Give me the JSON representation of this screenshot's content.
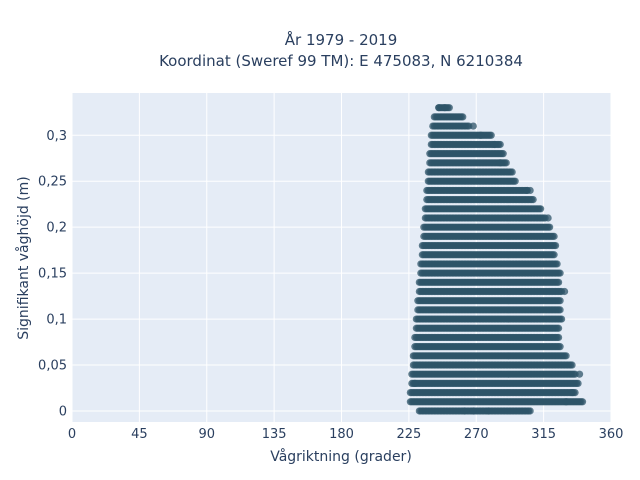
{
  "chart_data": {
    "type": "scatter",
    "title_lines": [
      "År 1979 - 2019",
      "Koordinat (Sweref 99 TM): E 475083, N 6210384"
    ],
    "xlabel": "Vågriktning (grader)",
    "ylabel": "Signifikant våghöjd (m)",
    "xlim": [
      0,
      360
    ],
    "ylim": [
      -0.012,
      0.346
    ],
    "x_ticks": [
      0,
      45,
      90,
      135,
      180,
      225,
      270,
      315,
      360
    ],
    "x_tick_labels": [
      "0",
      "45",
      "90",
      "135",
      "180",
      "225",
      "270",
      "315",
      "360"
    ],
    "y_ticks": [
      0,
      0.05,
      0.1,
      0.15,
      0.2,
      0.25,
      0.3
    ],
    "y_tick_labels": [
      "0",
      "0,05",
      "0,1",
      "0,15",
      "0,2",
      "0,25",
      "0,3"
    ],
    "grid": true,
    "background": "#e5ecf6",
    "marker_color": "#2e5468",
    "bands": [
      {
        "y": 0.33,
        "x": [
          245,
          252
        ]
      },
      {
        "y": 0.32,
        "x": [
          242,
          261
        ]
      },
      {
        "y": 0.31,
        "x": [
          241,
          265
        ]
      },
      {
        "y": 0.3,
        "x": [
          240,
          280
        ]
      },
      {
        "y": 0.29,
        "x": [
          240,
          286
        ]
      },
      {
        "y": 0.28,
        "x": [
          239,
          288
        ]
      },
      {
        "y": 0.27,
        "x": [
          239,
          290
        ]
      },
      {
        "y": 0.26,
        "x": [
          238,
          294
        ]
      },
      {
        "y": 0.25,
        "x": [
          238,
          296
        ]
      },
      {
        "y": 0.24,
        "x": [
          237,
          304
        ]
      },
      {
        "y": 0.23,
        "x": [
          237,
          308
        ]
      },
      {
        "y": 0.22,
        "x": [
          236,
          313
        ]
      },
      {
        "y": 0.21,
        "x": [
          236,
          316
        ]
      },
      {
        "y": 0.2,
        "x": [
          235,
          319
        ]
      },
      {
        "y": 0.19,
        "x": [
          235,
          322
        ]
      },
      {
        "y": 0.18,
        "x": [
          234,
          323
        ]
      },
      {
        "y": 0.17,
        "x": [
          234,
          322
        ]
      },
      {
        "y": 0.16,
        "x": [
          233,
          324
        ]
      },
      {
        "y": 0.15,
        "x": [
          233,
          326
        ]
      },
      {
        "y": 0.14,
        "x": [
          232,
          325
        ]
      },
      {
        "y": 0.13,
        "x": [
          232,
          327
        ]
      },
      {
        "y": 0.12,
        "x": [
          231,
          326
        ]
      },
      {
        "y": 0.11,
        "x": [
          231,
          326
        ]
      },
      {
        "y": 0.1,
        "x": [
          230,
          327
        ]
      },
      {
        "y": 0.09,
        "x": [
          230,
          325
        ]
      },
      {
        "y": 0.08,
        "x": [
          229,
          325
        ]
      },
      {
        "y": 0.07,
        "x": [
          229,
          326
        ]
      },
      {
        "y": 0.06,
        "x": [
          228,
          330
        ]
      },
      {
        "y": 0.05,
        "x": [
          228,
          334
        ]
      },
      {
        "y": 0.04,
        "x": [
          227,
          336
        ]
      },
      {
        "y": 0.03,
        "x": [
          227,
          338
        ]
      },
      {
        "y": 0.02,
        "x": [
          226,
          336
        ]
      },
      {
        "y": 0.01,
        "x": [
          226,
          340
        ]
      },
      {
        "y": 0.0,
        "x": [
          232,
          305
        ]
      }
    ],
    "extra_points": [
      {
        "x": 245,
        "y": 0.33
      },
      {
        "x": 249,
        "y": 0.33
      },
      {
        "x": 273,
        "y": 0.3
      },
      {
        "x": 268,
        "y": 0.31
      },
      {
        "x": 282,
        "y": 0.29
      },
      {
        "x": 286,
        "y": 0.27
      },
      {
        "x": 306,
        "y": 0.24
      },
      {
        "x": 304,
        "y": 0.24
      },
      {
        "x": 318,
        "y": 0.21
      },
      {
        "x": 329,
        "y": 0.13
      },
      {
        "x": 339,
        "y": 0.04
      },
      {
        "x": 341,
        "y": 0.01
      },
      {
        "x": 330,
        "y": 0.01
      },
      {
        "x": 334,
        "y": 0.02
      },
      {
        "x": 278,
        "y": 0.0
      },
      {
        "x": 306,
        "y": 0.0
      },
      {
        "x": 268,
        "y": 0.0
      },
      {
        "x": 262,
        "y": 0.0
      },
      {
        "x": 229,
        "y": 0.03
      }
    ]
  }
}
